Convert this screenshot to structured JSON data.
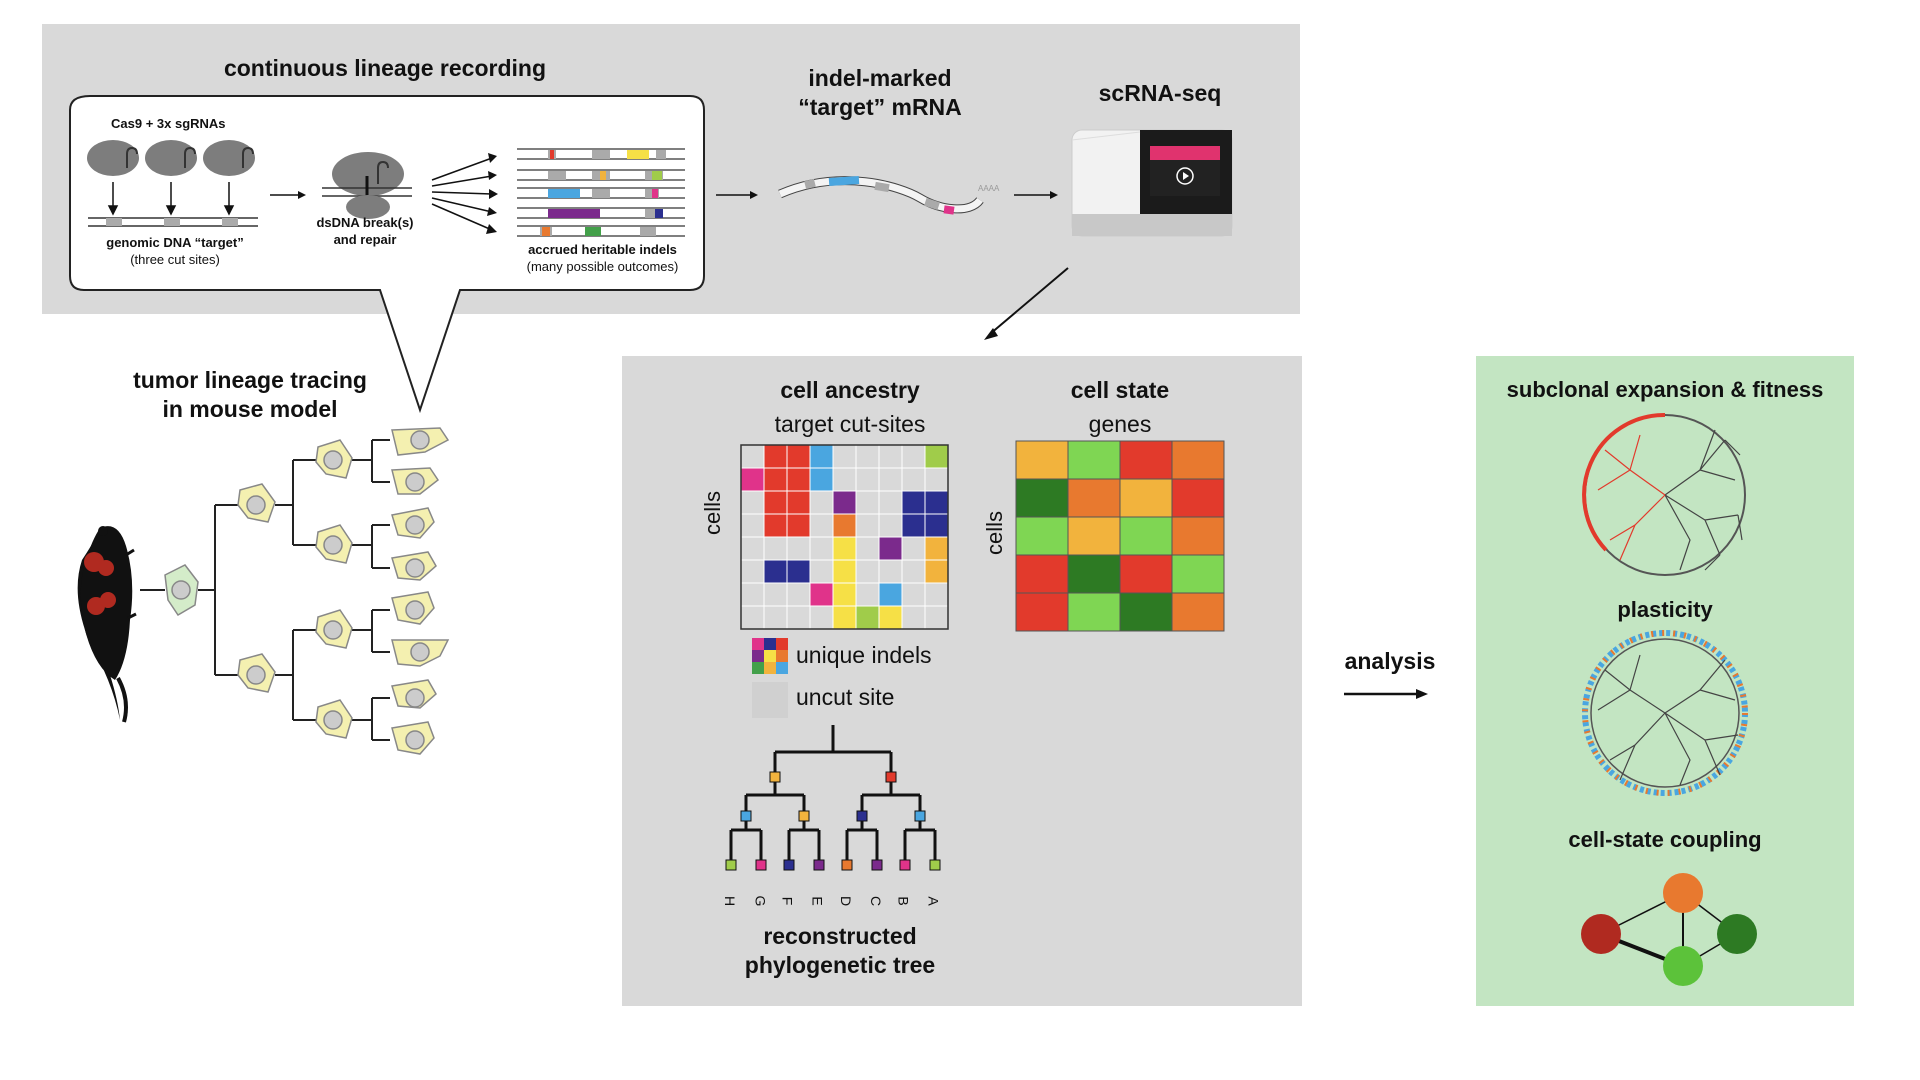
{
  "recording": {
    "panel_title": "continuous lineage recording",
    "cas9_label": "Cas9 + 3x sgRNAs",
    "genomic_label": "genomic DNA “target”",
    "genomic_sub": "(three cut sites)",
    "dsdna_label_1": "dsDNA break(s)",
    "dsdna_label_2": "and repair",
    "indels_label": "accrued heritable indels",
    "indels_sub": "(many possible outcomes)"
  },
  "mrna": {
    "title_1": "indel-marked",
    "title_2": "“target” mRNA",
    "polya": "AAAA"
  },
  "sequencer": {
    "title": "scRNA-seq"
  },
  "mouse_model": {
    "title_1": "tumor lineage tracing",
    "title_2": "in mouse model"
  },
  "ancestry": {
    "title": "cell ancestry",
    "xlabel": "target cut-sites",
    "ylabel": "cells",
    "legend_indels": "unique indels",
    "legend_uncut": "uncut site",
    "tree_title_1": "reconstructed",
    "tree_title_2": "phylogenetic tree",
    "leaves": [
      "H",
      "G",
      "F",
      "E",
      "D",
      "C",
      "B",
      "A"
    ]
  },
  "state": {
    "title": "cell state",
    "xlabel": "genes",
    "ylabel": "cells"
  },
  "analysis": {
    "label": "analysis"
  },
  "results": {
    "subclonal": "subclonal expansion & fitness",
    "plasticity": "plasticity",
    "coupling": "cell-state coupling"
  },
  "colors": {
    "panel_gray": "#d9d9d9",
    "results_green": "#c3e5c2",
    "red": "#e23a2c",
    "dark_green": "#2d7a23",
    "light_green": "#7fd653",
    "orange": "#e8792f",
    "yellow_orange": "#f2b33d",
    "blue": "#4aa6e0",
    "navy": "#2b2f8f",
    "purple": "#7b2a8c",
    "magenta": "#e0338a",
    "yellow": "#f6e046"
  }
}
